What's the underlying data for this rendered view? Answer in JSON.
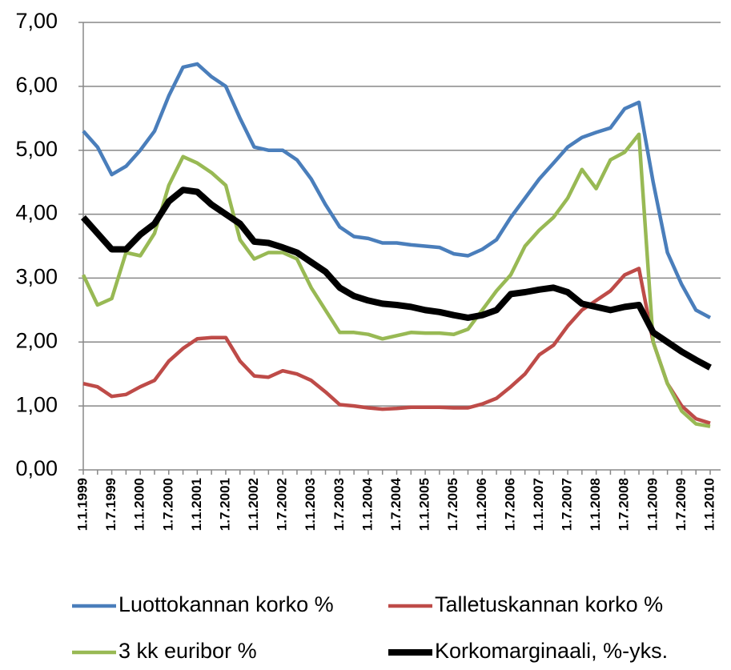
{
  "chart_data": {
    "type": "line",
    "categories": [
      "1.1.1999",
      null,
      "1.7.1999",
      null,
      "1.1.2000",
      null,
      "1.7.2000",
      null,
      "1.1.2001",
      null,
      "1.7.2001",
      null,
      "1.1.2002",
      null,
      "1.7.2002",
      null,
      "1.1.2003",
      null,
      "1.7.2003",
      null,
      "1.1.2004",
      null,
      "1.7.2004",
      null,
      "1.1.2005",
      null,
      "1.7.2005",
      null,
      "1.1.2006",
      null,
      "1.7.2006",
      null,
      "1.1.2007",
      null,
      "1.7.2007",
      null,
      "1.1.2008",
      null,
      "1.7.2008",
      null,
      "1.1.2009",
      null,
      "1.7.2009",
      null,
      "1.1.2010"
    ],
    "series": [
      {
        "name": "Luottokannan korko %",
        "color": "#4a7ebb",
        "values": [
          5.3,
          5.05,
          4.62,
          4.75,
          5.0,
          5.3,
          5.85,
          6.3,
          6.35,
          6.15,
          6.0,
          5.5,
          5.05,
          5.0,
          5.0,
          4.85,
          4.55,
          4.15,
          3.8,
          3.65,
          3.62,
          3.55,
          3.55,
          3.52,
          3.5,
          3.48,
          3.38,
          3.35,
          3.45,
          3.6,
          3.95,
          4.25,
          4.55,
          4.8,
          5.05,
          5.2,
          5.28,
          5.35,
          5.65,
          5.75,
          4.5,
          3.4,
          2.9,
          2.5,
          2.38
        ]
      },
      {
        "name": "Talletuskannan korko %",
        "color": "#be4b48",
        "values": [
          1.35,
          1.3,
          1.15,
          1.18,
          1.3,
          1.4,
          1.7,
          1.9,
          2.05,
          2.07,
          2.07,
          1.7,
          1.47,
          1.45,
          1.55,
          1.5,
          1.4,
          1.22,
          1.02,
          1.0,
          0.97,
          0.95,
          0.96,
          0.98,
          0.98,
          0.98,
          0.97,
          0.97,
          1.03,
          1.12,
          1.3,
          1.5,
          1.8,
          1.95,
          2.25,
          2.5,
          2.65,
          2.8,
          3.05,
          3.15,
          2.0,
          1.35,
          1.0,
          0.8,
          0.73
        ]
      },
      {
        "name": "3 kk euribor %",
        "color": "#98b954",
        "values": [
          3.05,
          2.58,
          2.68,
          3.4,
          3.35,
          3.7,
          4.45,
          4.9,
          4.8,
          4.65,
          4.45,
          3.6,
          3.3,
          3.4,
          3.4,
          3.3,
          2.85,
          2.5,
          2.15,
          2.15,
          2.12,
          2.05,
          2.1,
          2.15,
          2.14,
          2.14,
          2.12,
          2.2,
          2.5,
          2.8,
          3.05,
          3.5,
          3.75,
          3.95,
          4.25,
          4.7,
          4.4,
          4.85,
          4.97,
          5.25,
          2.0,
          1.35,
          0.92,
          0.72,
          0.68
        ]
      },
      {
        "name": "Korkomarginaali, %-yks.",
        "color": "#000000",
        "values": [
          3.95,
          3.7,
          3.45,
          3.45,
          3.68,
          3.85,
          4.2,
          4.38,
          4.35,
          4.15,
          4.0,
          3.85,
          3.57,
          3.55,
          3.48,
          3.4,
          3.25,
          3.1,
          2.85,
          2.72,
          2.65,
          2.6,
          2.58,
          2.55,
          2.5,
          2.47,
          2.42,
          2.38,
          2.42,
          2.5,
          2.75,
          2.78,
          2.82,
          2.85,
          2.78,
          2.6,
          2.55,
          2.5,
          2.55,
          2.58,
          2.15,
          2.0,
          1.85,
          1.72,
          1.6
        ]
      }
    ],
    "ylim": [
      0,
      7
    ],
    "yticks": [
      {
        "value": 0,
        "label": "0,00"
      },
      {
        "value": 1,
        "label": "1,00"
      },
      {
        "value": 2,
        "label": "2,00"
      },
      {
        "value": 3,
        "label": "3,00"
      },
      {
        "value": 4,
        "label": "4,00"
      },
      {
        "value": 5,
        "label": "5,00"
      },
      {
        "value": 6,
        "label": "6,00"
      },
      {
        "value": 7,
        "label": "7,00"
      }
    ],
    "grid": true,
    "legend": "bottom"
  }
}
